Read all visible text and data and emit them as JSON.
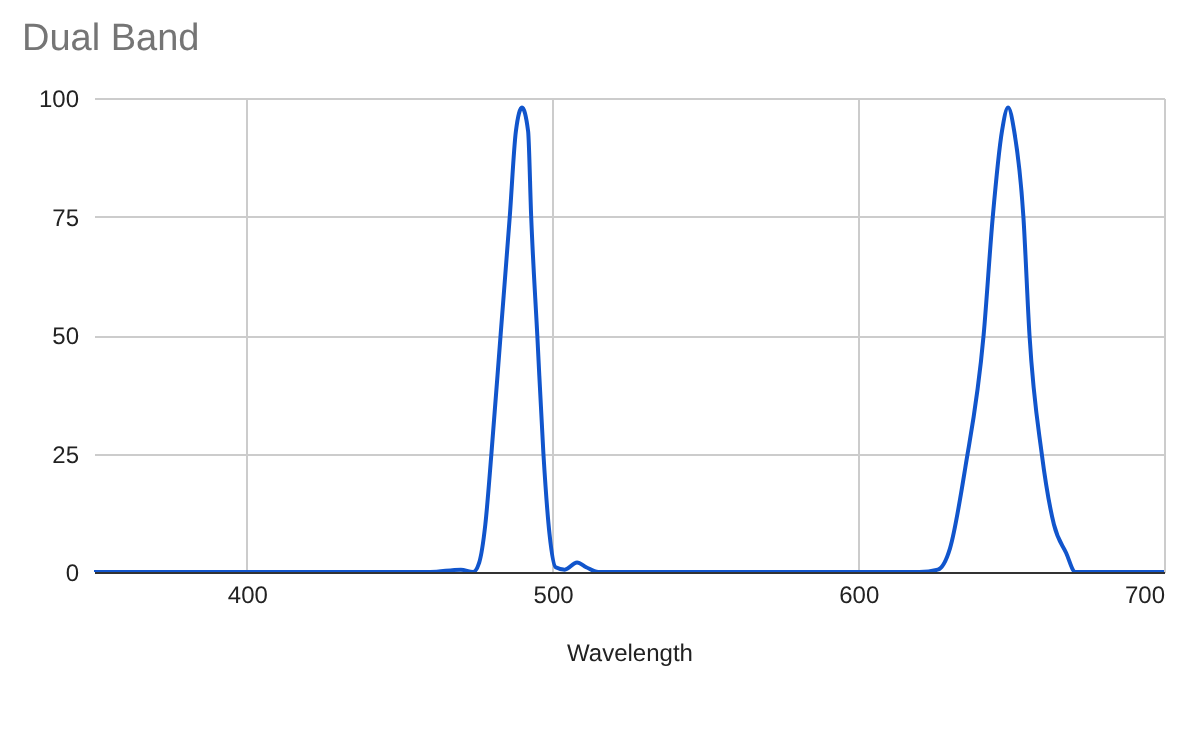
{
  "chart_data": {
    "type": "line",
    "title": "Dual Band",
    "xlabel": "Wavelength",
    "x": [
      350,
      460,
      470,
      474,
      476,
      478,
      480,
      483,
      486,
      488,
      490,
      492,
      493,
      495,
      497,
      499,
      501,
      504,
      508,
      511,
      515,
      620,
      626,
      630,
      635,
      641,
      644,
      647,
      649,
      651,
      654,
      656,
      660,
      664,
      668,
      671,
      700
    ],
    "series": [
      {
        "color": "#1155cc",
        "values": [
          0,
          0,
          0.5,
          0,
          2,
          10,
          25,
          50,
          75,
          93,
          98,
          93,
          75,
          50,
          25,
          8,
          1,
          0.5,
          2,
          1,
          0,
          0,
          0.5,
          5,
          22,
          50,
          75,
          93,
          98,
          93,
          75,
          50,
          25,
          10,
          4,
          0,
          0
        ]
      }
    ],
    "xlim": [
      350,
      700
    ],
    "xticks": [
      400,
      500,
      600,
      700
    ],
    "ylim": [
      0,
      100
    ],
    "yticks": [
      0,
      25,
      50,
      75,
      100
    ],
    "grid": true,
    "marker": "none",
    "line_style": "solid"
  }
}
